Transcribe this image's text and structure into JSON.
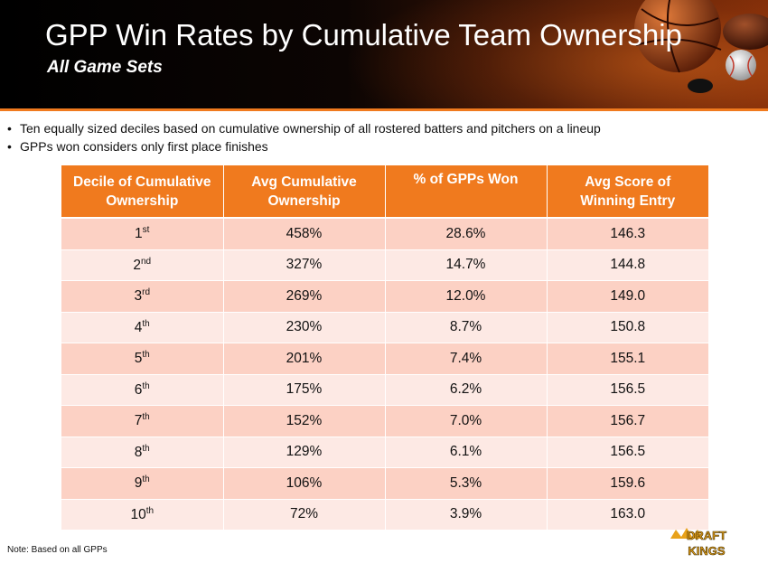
{
  "header": {
    "title": "GPP Win Rates by Cumulative Team Ownership",
    "subtitle": "All Game Sets"
  },
  "bullets": [
    "Ten equally sized deciles based on cumulative ownership of all rostered batters and pitchers on a lineup",
    "GPPs won considers only first place finishes"
  ],
  "table": {
    "headers": [
      [
        "Decile of Cumulative",
        "Ownership"
      ],
      [
        "Avg Cumulative",
        "Ownership"
      ],
      [
        "% of GPPs Won",
        ""
      ],
      [
        "Avg Score of",
        "Winning Entry"
      ]
    ],
    "rows": [
      {
        "decile": "1",
        "suffix": "st",
        "ownership": "458%",
        "won": "28.6%",
        "score": "146.3"
      },
      {
        "decile": "2",
        "suffix": "nd",
        "ownership": "327%",
        "won": "14.7%",
        "score": "144.8"
      },
      {
        "decile": "3",
        "suffix": "rd",
        "ownership": "269%",
        "won": "12.0%",
        "score": "149.0"
      },
      {
        "decile": "4",
        "suffix": "th",
        "ownership": "230%",
        "won": "8.7%",
        "score": "150.8"
      },
      {
        "decile": "5",
        "suffix": "th",
        "ownership": "201%",
        "won": "7.4%",
        "score": "155.1"
      },
      {
        "decile": "6",
        "suffix": "th",
        "ownership": "175%",
        "won": "6.2%",
        "score": "156.5"
      },
      {
        "decile": "7",
        "suffix": "th",
        "ownership": "152%",
        "won": "7.0%",
        "score": "156.7"
      },
      {
        "decile": "8",
        "suffix": "th",
        "ownership": "129%",
        "won": "6.1%",
        "score": "156.5"
      },
      {
        "decile": "9",
        "suffix": "th",
        "ownership": "106%",
        "won": "5.3%",
        "score": "159.6"
      },
      {
        "decile": "10",
        "suffix": "th",
        "ownership": "72%",
        "won": "3.9%",
        "score": "163.0"
      }
    ]
  },
  "note": "Note: Based on all GPPs",
  "logo": {
    "line1": "DRAFT",
    "line2": "KINGS"
  },
  "colors": {
    "accent": "#f07a1e",
    "row_dark": "#fcd1c4",
    "row_light": "#fde9e4",
    "logo_gold": "#e8a21a"
  }
}
